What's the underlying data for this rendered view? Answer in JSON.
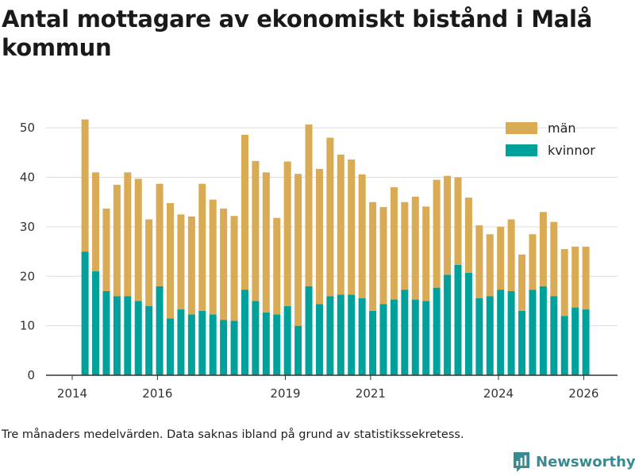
{
  "title": "Antal mottagare av ekonomiskt bistånd i Malå kommun",
  "footnote": "Tre månaders medelvärden. Data saknas ibland på grund av statistikssekretess.",
  "brand": {
    "name": "Newsworthy",
    "icon": "newsworthy-chart-logo-icon",
    "color": "#3a8a91"
  },
  "colors": {
    "kvinnor": "#00a19a",
    "man": "#d9ab55",
    "grid": "#dddddd",
    "axis": "#333333"
  },
  "chart_data": {
    "type": "bar",
    "stacked": true,
    "title": "Antal mottagare av ekonomiskt bistånd i Malå kommun",
    "xlabel": "",
    "ylabel": "",
    "ylim": [
      0,
      55
    ],
    "xlim": [
      2013.6,
      2026.4
    ],
    "yticks": [
      0,
      10,
      20,
      30,
      40,
      50
    ],
    "xticks": [
      2014,
      2016,
      2019,
      2021,
      2024,
      2026
    ],
    "legend_position": "top-right",
    "x": [
      2014.3,
      2014.55,
      2014.8,
      2015.05,
      2015.3,
      2015.55,
      2015.8,
      2016.05,
      2016.3,
      2016.55,
      2016.8,
      2017.05,
      2017.3,
      2017.55,
      2017.8,
      2018.05,
      2018.3,
      2018.55,
      2018.8,
      2019.05,
      2019.3,
      2019.55,
      2019.8,
      2020.05,
      2020.3,
      2020.55,
      2020.8,
      2021.05,
      2021.3,
      2021.55,
      2021.8,
      2022.05,
      2022.3,
      2022.55,
      2022.8,
      2023.05,
      2023.3,
      2023.55,
      2023.8,
      2024.05,
      2024.3,
      2024.55,
      2024.8,
      2025.05,
      2025.3,
      2025.55,
      2025.8,
      2026.05
    ],
    "series": [
      {
        "name": "kvinnor",
        "values": [
          25,
          21,
          17,
          16,
          16,
          15,
          14,
          18,
          11.5,
          13.3,
          12.3,
          13,
          12.3,
          11.2,
          11,
          17.3,
          15,
          12.7,
          12.3,
          14,
          10,
          18,
          14.4,
          16,
          16.3,
          16.3,
          15.6,
          13,
          14.4,
          15.3,
          17.3,
          15.3,
          15,
          17.7,
          20.3,
          22.3,
          20.7,
          15.6,
          16,
          17.3,
          17,
          13,
          17.3,
          18,
          16,
          12,
          13.7,
          13.3
        ]
      },
      {
        "name": "män",
        "values": [
          26.7,
          20,
          16.7,
          22.5,
          25,
          24.7,
          17.5,
          20.7,
          23.3,
          19.2,
          19.8,
          25.7,
          23.2,
          22.5,
          21.2,
          31.3,
          28.3,
          28.3,
          19.5,
          29.2,
          30.7,
          32.7,
          27.3,
          32,
          28.3,
          27.3,
          25,
          22,
          19.6,
          22.7,
          17.7,
          20.8,
          19.1,
          21.8,
          20,
          17.7,
          15.2,
          14.7,
          12.5,
          12.7,
          14.5,
          11.4,
          11.2,
          15,
          15,
          13.5,
          12.3,
          12.7
        ]
      }
    ],
    "legend": [
      "män",
      "kvinnor"
    ]
  }
}
